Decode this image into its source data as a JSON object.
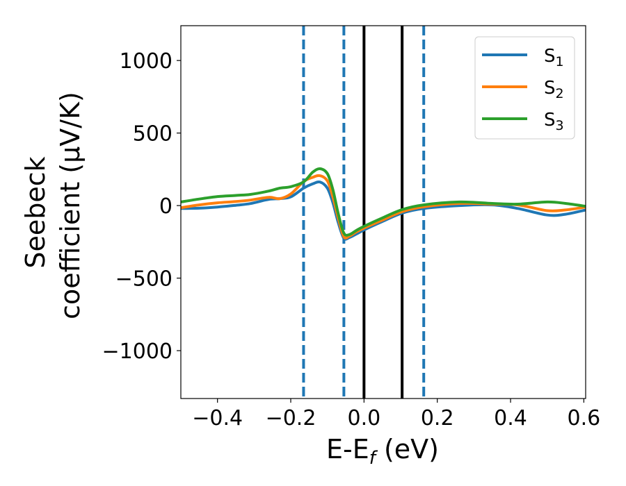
{
  "chart_data": {
    "type": "line",
    "title": "",
    "xlabel_main": "E-E",
    "xlabel_sub": "f",
    "xlabel_unit": " (eV)",
    "ylabel_line1": "Seebeck",
    "ylabel_line2": "coefficient  (μV/K)",
    "xlim": [
      -0.5,
      0.605
    ],
    "ylim": [
      -1330,
      1240
    ],
    "xticks": [
      -0.4,
      -0.2,
      0.0,
      0.2,
      0.4,
      0.6
    ],
    "xtick_labels": [
      "−0.4",
      "−0.2",
      "0.0",
      "0.2",
      "0.4",
      "0.6"
    ],
    "yticks": [
      1000,
      500,
      0,
      -500,
      -1000
    ],
    "ytick_labels": [
      "1000",
      "500",
      "0",
      "−500",
      "−1000"
    ],
    "grid": false,
    "legend_position": "top-right",
    "x": [
      -0.5,
      -0.45,
      -0.4,
      -0.35,
      -0.31,
      -0.26,
      -0.23,
      -0.2,
      -0.165,
      -0.14,
      -0.12,
      -0.1,
      -0.085,
      -0.07,
      -0.055,
      -0.04,
      -0.02,
      0.0,
      0.05,
      0.104,
      0.163,
      0.26,
      0.35,
      0.42,
      0.5,
      0.55,
      0.605
    ],
    "series": [
      {
        "name": "S",
        "sub": "1",
        "color": "#1f77b4",
        "values": [
          -20,
          -18,
          -10,
          2,
          14,
          43,
          48,
          60,
          120,
          150,
          162,
          120,
          20,
          -120,
          -225,
          -220,
          -195,
          -168,
          -110,
          -52,
          -20,
          0,
          5,
          -20,
          -65,
          -60,
          -30
        ]
      },
      {
        "name": "S",
        "sub": "2",
        "color": "#ff7f0e",
        "values": [
          -15,
          5,
          19,
          28,
          38,
          57,
          48,
          80,
          165,
          195,
          206,
          170,
          60,
          -90,
          -215,
          -210,
          -180,
          -155,
          -100,
          -42,
          -8,
          15,
          10,
          5,
          -35,
          -30,
          -10
        ]
      },
      {
        "name": "S",
        "sub": "3",
        "color": "#2ca02c",
        "values": [
          25,
          45,
          62,
          70,
          77,
          100,
          120,
          130,
          163,
          230,
          254,
          220,
          110,
          -60,
          -190,
          -200,
          -170,
          -143,
          -85,
          -28,
          5,
          25,
          15,
          10,
          25,
          15,
          -5
        ]
      }
    ],
    "vlines": [
      {
        "x": -0.165,
        "style": "dashed",
        "color": "#1f77b4"
      },
      {
        "x": -0.055,
        "style": "dashed",
        "color": "#1f77b4"
      },
      {
        "x": 0.0,
        "style": "solid",
        "color": "#000000"
      },
      {
        "x": 0.104,
        "style": "solid",
        "color": "#000000"
      },
      {
        "x": 0.163,
        "style": "dashed",
        "color": "#1f77b4"
      }
    ]
  }
}
